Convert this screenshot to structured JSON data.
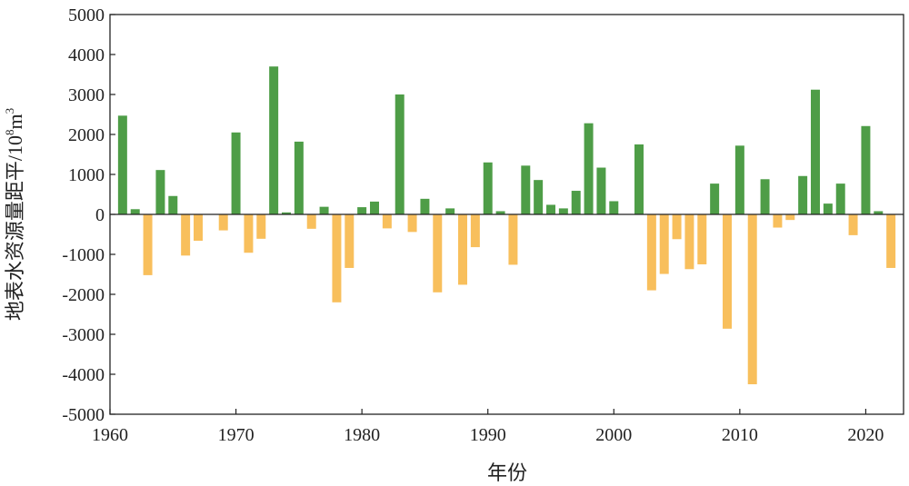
{
  "chart_data": {
    "type": "bar",
    "title": "",
    "xlabel": "年份",
    "ylabel_main": "地表水资源量距平/10",
    "ylabel_exp": "8",
    "ylabel_unit": "m",
    "ylabel_unit_exp": "3",
    "xlim": [
      1960,
      2023
    ],
    "ylim": [
      -5000,
      5000
    ],
    "x_ticks": [
      1960,
      1970,
      1980,
      1990,
      2000,
      2010,
      2020
    ],
    "x_tick_labels": [
      "1960",
      "1970",
      "1980",
      "1990",
      "2000",
      "2010",
      "2020"
    ],
    "y_ticks": [
      -5000,
      -4000,
      -3000,
      -2000,
      -1000,
      0,
      1000,
      2000,
      3000,
      4000,
      5000
    ],
    "y_tick_labels": [
      "-5000",
      "-4000",
      "-3000",
      "-2000",
      "-1000",
      "0",
      "1000",
      "2000",
      "3000",
      "4000",
      "5000"
    ],
    "grid": false,
    "positive_color": "#4e9d47",
    "negative_color": "#f8bf5c",
    "years": [
      1961,
      1962,
      1963,
      1964,
      1965,
      1966,
      1967,
      1968,
      1969,
      1970,
      1971,
      1972,
      1973,
      1974,
      1975,
      1976,
      1977,
      1978,
      1979,
      1980,
      1981,
      1982,
      1983,
      1984,
      1985,
      1986,
      1987,
      1988,
      1989,
      1990,
      1991,
      1992,
      1993,
      1994,
      1995,
      1996,
      1997,
      1998,
      1999,
      2000,
      2001,
      2002,
      2003,
      2004,
      2005,
      2006,
      2007,
      2008,
      2009,
      2010,
      2011,
      2012,
      2013,
      2014,
      2015,
      2016,
      2017,
      2018,
      2019,
      2020,
      2021,
      2022
    ],
    "values": [
      2470,
      130,
      -1520,
      1110,
      460,
      -1030,
      -660,
      0,
      -400,
      2050,
      -960,
      -610,
      3700,
      50,
      1820,
      -360,
      190,
      -2200,
      -1340,
      180,
      320,
      -350,
      3000,
      -440,
      390,
      -1950,
      150,
      -1760,
      -820,
      1300,
      80,
      -1260,
      1220,
      860,
      240,
      150,
      590,
      2280,
      1170,
      330,
      0,
      1750,
      -1900,
      -1490,
      -620,
      -1370,
      -1250,
      770,
      -2860,
      1720,
      -4250,
      880,
      -330,
      -140,
      960,
      3120,
      270,
      770,
      -520,
      2210,
      80,
      -1340
    ]
  }
}
